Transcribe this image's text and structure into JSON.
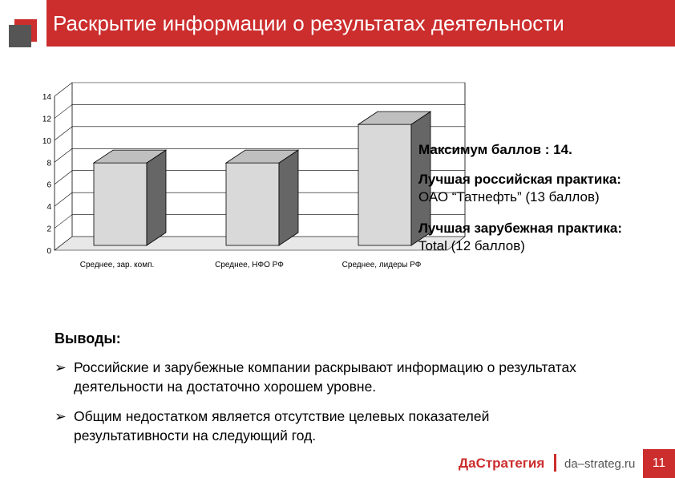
{
  "header": {
    "title": "Раскрытие информации о результатах деятельности"
  },
  "chart_data": {
    "type": "bar",
    "categories": [
      "Среднее, зар. комп.",
      "Среднее, НФО РФ",
      "Среднее, лидеры РФ"
    ],
    "values": [
      7.5,
      7.5,
      11
    ],
    "yticks": [
      "0",
      "2",
      "4",
      "6",
      "8",
      "10",
      "12",
      "14"
    ],
    "ylim": [
      0,
      14
    ],
    "grid": true,
    "bar_color": "#d9d9d9"
  },
  "notes": {
    "max_score": "Максимум баллов : 14.",
    "best_russian_title": "Лучшая российская практика:",
    "best_russian_value": "ОАО “Татнефть” (13 баллов)",
    "best_foreign_title": "Лучшая зарубежная практика:",
    "best_foreign_value": "Total (12 баллов)"
  },
  "conclusions": {
    "title": "Выводы:",
    "items": [
      "Российские и зарубежные компании раскрывают информацию о результатах деятельности на достаточно хорошем уровне.",
      "Общим недостатком является отсутствие целевых показателей результативности на следующий год."
    ]
  },
  "footer": {
    "brand": "ДаСтратегия",
    "url": "da–strateg.ru",
    "page": "11"
  },
  "colors": {
    "accent": "#cc2d2d"
  }
}
